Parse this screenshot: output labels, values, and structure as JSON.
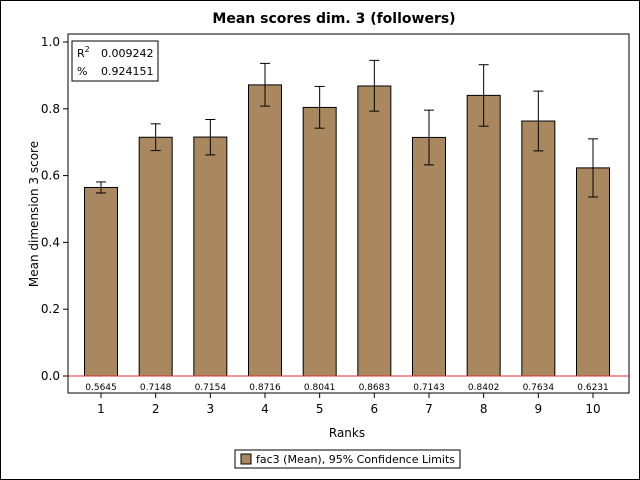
{
  "chart_data": {
    "type": "bar",
    "title": "Mean scores dim. 3 (followers)",
    "xlabel": "Ranks",
    "ylabel": "Mean dimension 3 score",
    "categories": [
      "1",
      "2",
      "3",
      "4",
      "5",
      "6",
      "7",
      "8",
      "9",
      "10"
    ],
    "values": [
      0.5645,
      0.7148,
      0.7154,
      0.8716,
      0.8041,
      0.8683,
      0.7143,
      0.8402,
      0.7634,
      0.6231
    ],
    "value_labels": [
      "0.5645",
      "0.7148",
      "0.7154",
      "0.8716",
      "0.8041",
      "0.8683",
      "0.7143",
      "0.8402",
      "0.7634",
      "0.6231"
    ],
    "ci_lower": [
      0.548,
      0.675,
      0.662,
      0.808,
      0.742,
      0.793,
      0.632,
      0.748,
      0.674,
      0.536
    ],
    "ci_upper": [
      0.581,
      0.755,
      0.768,
      0.936,
      0.867,
      0.945,
      0.796,
      0.932,
      0.853,
      0.71
    ],
    "ylim": [
      0.0,
      1.0
    ],
    "yticks": [
      "0.0",
      "0.2",
      "0.4",
      "0.6",
      "0.8",
      "1.0"
    ],
    "legend": "fac3 (Mean), 95% Confidence Limits",
    "legend_position": "bottom",
    "stats": {
      "r2_label": "R",
      "r2_sup": "2",
      "r2_value": "0.009242",
      "pct_label": "%",
      "pct_value": "0.924151"
    },
    "colors": {
      "bar": "#a98860",
      "reference_line": "#e03030"
    },
    "grid": false
  }
}
